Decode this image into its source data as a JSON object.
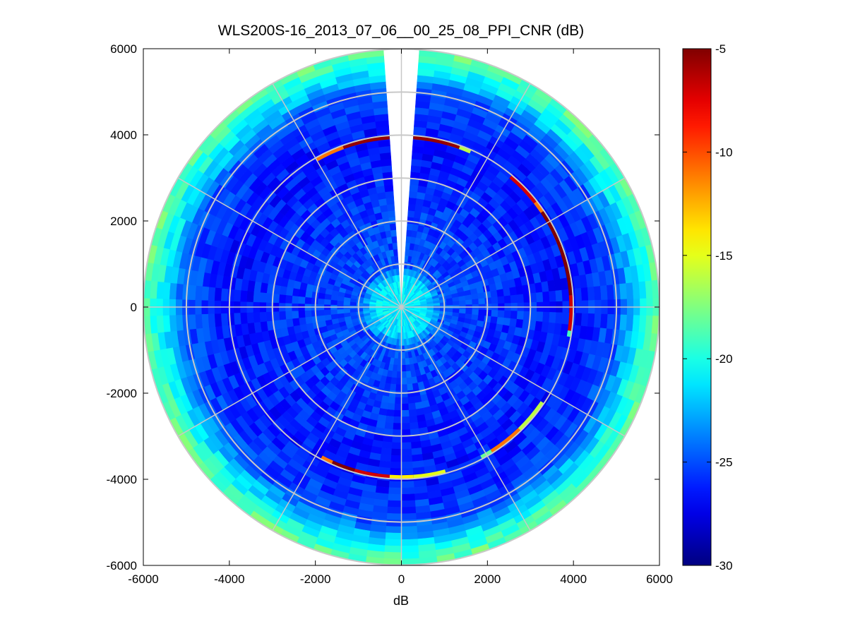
{
  "chart_data": {
    "type": "heatmap",
    "subtype": "polar PPI scan",
    "title": "WLS200S-16_2013_07_06__00_25_08_PPI_CNR (dB)",
    "xlabel": "dB",
    "ylabel": "",
    "xlim": [
      -6000,
      6000
    ],
    "ylim": [
      -6000,
      6000
    ],
    "x_ticks": [
      "-6000",
      "-4000",
      "-2000",
      "0",
      "2000",
      "4000",
      "6000"
    ],
    "y_ticks": [
      "6000",
      "4000",
      "2000",
      "0",
      "-2000",
      "-4000",
      "-6000"
    ],
    "max_range": 6000,
    "range_rings": [
      1000,
      2000,
      3000,
      4000,
      5000,
      6000
    ],
    "radial_spokes_deg": [
      0,
      30,
      60,
      90,
      120,
      150,
      180,
      210,
      240,
      270,
      300,
      330
    ],
    "missing_azimuth_sector_deg": [
      -4,
      4
    ],
    "grid": true,
    "colorbar": {
      "min": -30,
      "max": -5,
      "ticks": [
        "-5",
        "-10",
        "-15",
        "-20",
        "-25",
        "-30"
      ],
      "colormap": "jet"
    },
    "cnr_profile": [
      {
        "range": 0,
        "cnr": -21
      },
      {
        "range": 600,
        "cnr": -21
      },
      {
        "range": 1000,
        "cnr": -25
      },
      {
        "range": 4000,
        "cnr": -26.5
      },
      {
        "range": 5000,
        "cnr": -25
      },
      {
        "range": 5500,
        "cnr": -21
      },
      {
        "range": 6000,
        "cnr": -18
      }
    ],
    "hard_target_arc": {
      "range": 3950,
      "segments": [
        {
          "az_from": -30,
          "az_to": -20,
          "cnr": -11
        },
        {
          "az_from": -20,
          "az_to": -4,
          "cnr": -5.5
        },
        {
          "az_from": 4,
          "az_to": 20,
          "cnr": -5.5
        },
        {
          "az_from": 20,
          "az_to": 24,
          "cnr": -16
        },
        {
          "az_from": 40,
          "az_to": 52,
          "cnr": -7
        },
        {
          "az_from": 52,
          "az_to": 56,
          "cnr": -11
        },
        {
          "az_from": 56,
          "az_to": 86,
          "cnr": -5
        },
        {
          "az_from": 86,
          "az_to": 98,
          "cnr": -7
        },
        {
          "az_from": 98,
          "az_to": 100,
          "cnr": -19
        },
        {
          "az_from": 124,
          "az_to": 136,
          "cnr": -16
        },
        {
          "az_from": 136,
          "az_to": 148,
          "cnr": -11
        },
        {
          "az_from": 148,
          "az_to": 152,
          "cnr": -18
        },
        {
          "az_from": 165,
          "az_to": 176,
          "cnr": -15
        },
        {
          "az_from": 176,
          "az_to": 184,
          "cnr": -14
        },
        {
          "az_from": 184,
          "az_to": 196,
          "cnr": -7
        },
        {
          "az_from": 196,
          "az_to": 204,
          "cnr": -5
        },
        {
          "az_from": 204,
          "az_to": 208,
          "cnr": -11
        }
      ]
    }
  }
}
